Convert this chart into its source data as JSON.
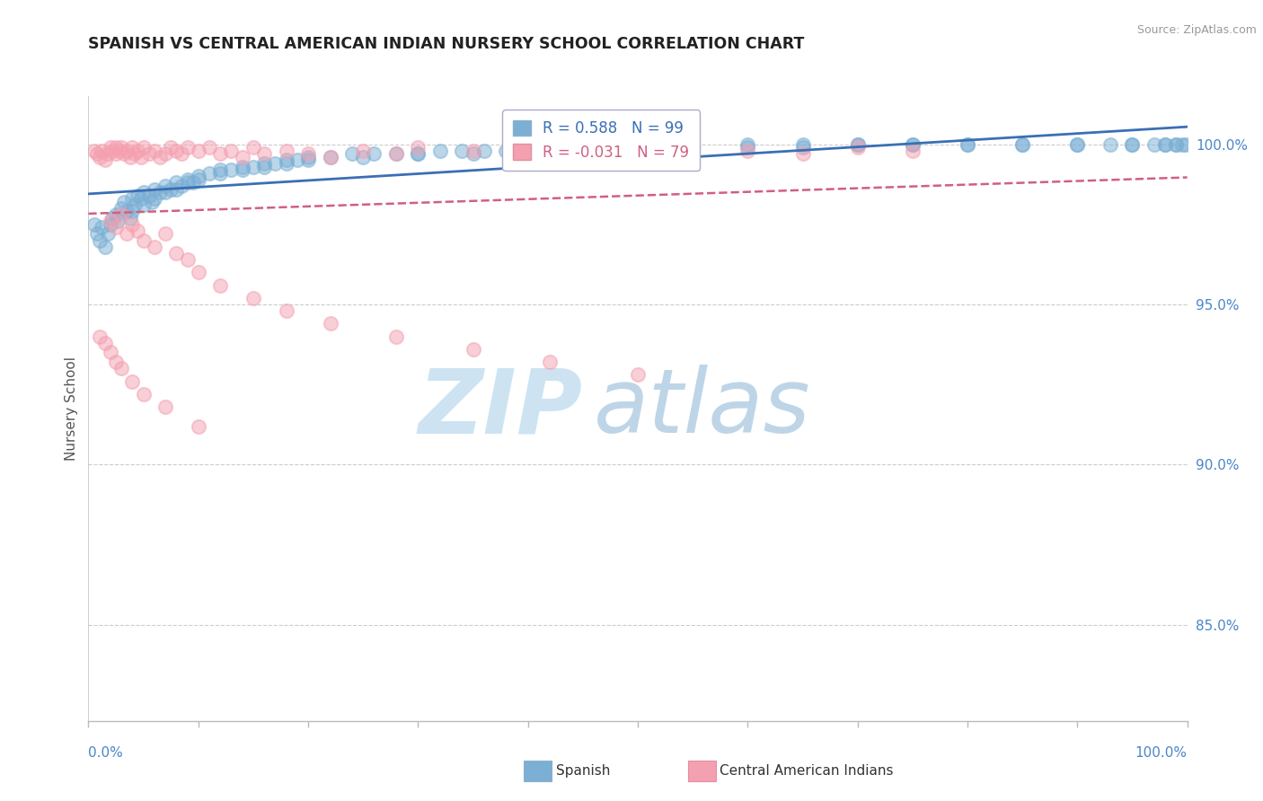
{
  "title": "SPANISH VS CENTRAL AMERICAN INDIAN NURSERY SCHOOL CORRELATION CHART",
  "source_text": "Source: ZipAtlas.com",
  "ylabel": "Nursery School",
  "legend_spanish": "Spanish",
  "legend_ca_indians": "Central American Indians",
  "r_spanish": 0.588,
  "n_spanish": 99,
  "r_ca": -0.031,
  "n_ca": 79,
  "xlim": [
    0.0,
    1.0
  ],
  "ylim": [
    0.82,
    1.015
  ],
  "yticks": [
    0.85,
    0.9,
    0.95,
    1.0
  ],
  "ytick_labels": [
    "85.0%",
    "90.0%",
    "95.0%",
    "100.0%"
  ],
  "color_spanish": "#7bafd4",
  "color_ca": "#f4a0b0",
  "trendline_spanish_color": "#3a6fb5",
  "trendline_ca_color": "#d06080",
  "watermark_zip": "ZIP",
  "watermark_atlas": "atlas",
  "watermark_color_zip": "#c8dff0",
  "watermark_color_atlas": "#b0cce0",
  "spanish_x": [
    0.005,
    0.008,
    0.01,
    0.012,
    0.015,
    0.018,
    0.02,
    0.022,
    0.025,
    0.027,
    0.03,
    0.032,
    0.035,
    0.038,
    0.04,
    0.042,
    0.045,
    0.048,
    0.05,
    0.055,
    0.058,
    0.06,
    0.065,
    0.07,
    0.075,
    0.08,
    0.085,
    0.09,
    0.095,
    0.1,
    0.11,
    0.12,
    0.13,
    0.14,
    0.15,
    0.16,
    0.17,
    0.18,
    0.19,
    0.2,
    0.22,
    0.24,
    0.26,
    0.28,
    0.3,
    0.32,
    0.34,
    0.36,
    0.38,
    0.4,
    0.42,
    0.44,
    0.46,
    0.5,
    0.55,
    0.6,
    0.65,
    0.7,
    0.75,
    0.8,
    0.85,
    0.9,
    0.93,
    0.95,
    0.97,
    0.98,
    0.99,
    0.995,
    0.999,
    0.04,
    0.05,
    0.06,
    0.07,
    0.08,
    0.09,
    0.1,
    0.12,
    0.14,
    0.16,
    0.18,
    0.2,
    0.25,
    0.3,
    0.35,
    0.4,
    0.45,
    0.5,
    0.55,
    0.6,
    0.65,
    0.7,
    0.75,
    0.8,
    0.85,
    0.9,
    0.95,
    0.98,
    0.99
  ],
  "spanish_y": [
    0.975,
    0.972,
    0.97,
    0.974,
    0.968,
    0.972,
    0.975,
    0.977,
    0.978,
    0.976,
    0.98,
    0.982,
    0.979,
    0.977,
    0.983,
    0.981,
    0.984,
    0.983,
    0.985,
    0.984,
    0.982,
    0.986,
    0.985,
    0.987,
    0.986,
    0.988,
    0.987,
    0.989,
    0.988,
    0.99,
    0.991,
    0.992,
    0.992,
    0.993,
    0.993,
    0.994,
    0.994,
    0.995,
    0.995,
    0.996,
    0.996,
    0.997,
    0.997,
    0.997,
    0.997,
    0.998,
    0.998,
    0.998,
    0.998,
    0.998,
    0.999,
    0.999,
    0.999,
    0.999,
    1.0,
    1.0,
    1.0,
    1.0,
    1.0,
    1.0,
    1.0,
    1.0,
    1.0,
    1.0,
    1.0,
    1.0,
    1.0,
    1.0,
    1.0,
    0.979,
    0.981,
    0.983,
    0.985,
    0.986,
    0.988,
    0.989,
    0.991,
    0.992,
    0.993,
    0.994,
    0.995,
    0.996,
    0.997,
    0.997,
    0.998,
    0.998,
    0.998,
    0.999,
    0.999,
    0.999,
    1.0,
    1.0,
    1.0,
    1.0,
    1.0,
    1.0,
    1.0,
    1.0
  ],
  "ca_x": [
    0.005,
    0.008,
    0.01,
    0.012,
    0.015,
    0.018,
    0.02,
    0.022,
    0.025,
    0.025,
    0.028,
    0.03,
    0.032,
    0.035,
    0.038,
    0.04,
    0.042,
    0.045,
    0.048,
    0.05,
    0.055,
    0.06,
    0.065,
    0.07,
    0.075,
    0.08,
    0.085,
    0.09,
    0.1,
    0.11,
    0.12,
    0.13,
    0.14,
    0.15,
    0.16,
    0.18,
    0.2,
    0.22,
    0.25,
    0.28,
    0.3,
    0.35,
    0.4,
    0.45,
    0.5,
    0.55,
    0.6,
    0.65,
    0.7,
    0.75,
    0.02,
    0.025,
    0.03,
    0.035,
    0.04,
    0.045,
    0.05,
    0.06,
    0.07,
    0.08,
    0.09,
    0.1,
    0.12,
    0.15,
    0.18,
    0.22,
    0.28,
    0.35,
    0.42,
    0.5,
    0.01,
    0.015,
    0.02,
    0.025,
    0.03,
    0.04,
    0.05,
    0.07,
    0.1
  ],
  "ca_y": [
    0.998,
    0.997,
    0.996,
    0.998,
    0.995,
    0.997,
    0.999,
    0.998,
    0.997,
    0.999,
    0.998,
    0.999,
    0.997,
    0.998,
    0.996,
    0.999,
    0.997,
    0.998,
    0.996,
    0.999,
    0.997,
    0.998,
    0.996,
    0.997,
    0.999,
    0.998,
    0.997,
    0.999,
    0.998,
    0.999,
    0.997,
    0.998,
    0.996,
    0.999,
    0.997,
    0.998,
    0.997,
    0.996,
    0.998,
    0.997,
    0.999,
    0.998,
    0.997,
    0.998,
    0.997,
    0.999,
    0.998,
    0.997,
    0.999,
    0.998,
    0.976,
    0.974,
    0.978,
    0.972,
    0.975,
    0.973,
    0.97,
    0.968,
    0.972,
    0.966,
    0.964,
    0.96,
    0.956,
    0.952,
    0.948,
    0.944,
    0.94,
    0.936,
    0.932,
    0.928,
    0.94,
    0.938,
    0.935,
    0.932,
    0.93,
    0.926,
    0.922,
    0.918,
    0.912
  ]
}
